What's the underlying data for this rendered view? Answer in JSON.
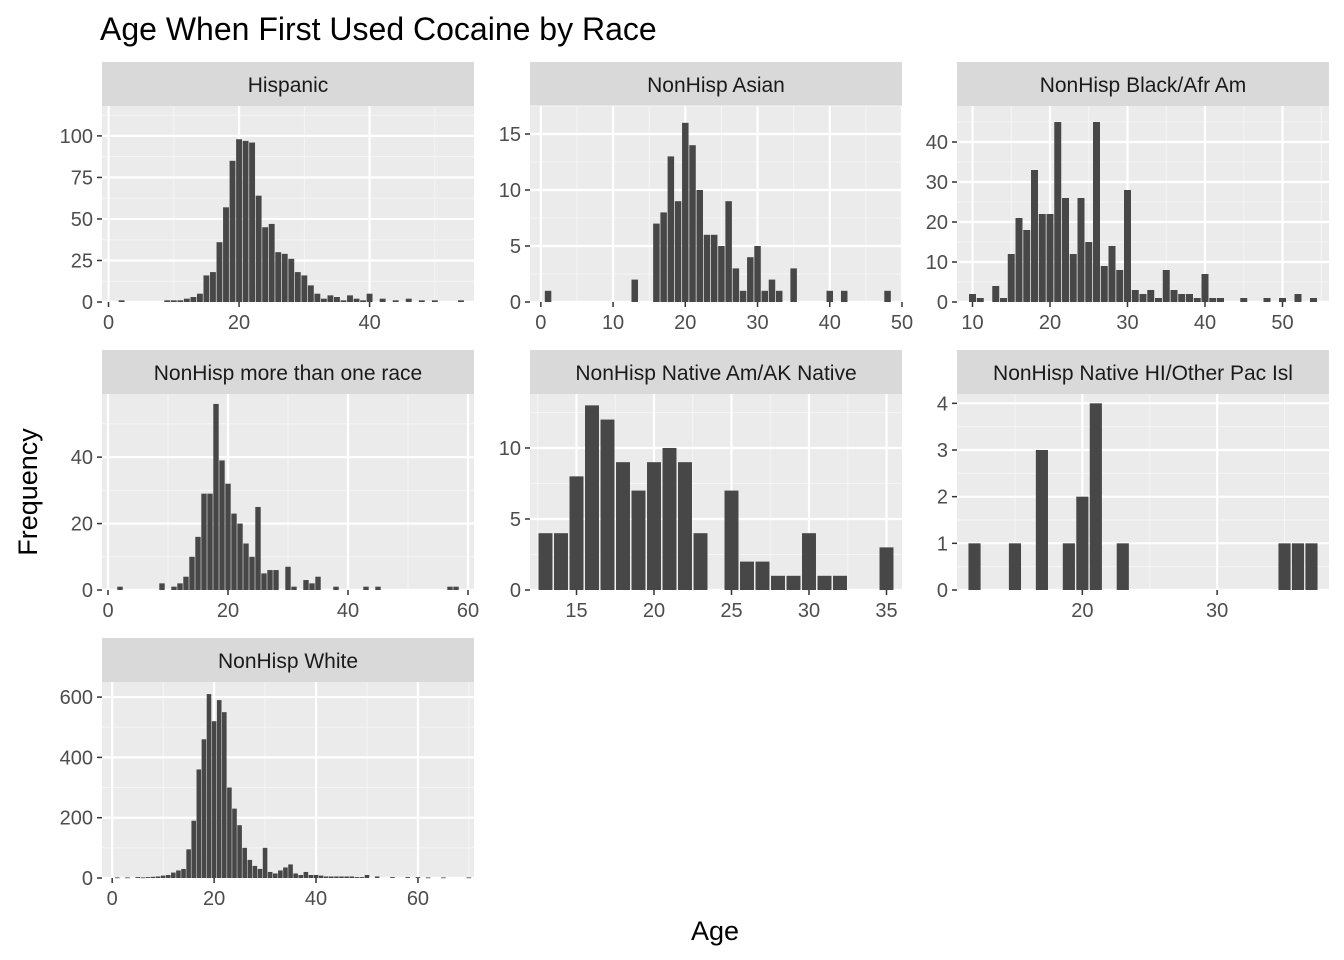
{
  "chart_data": {
    "type": "bar",
    "title": "Age When First Used Cocaine by Race",
    "xlabel": "Age",
    "ylabel": "Frequency",
    "grid": true,
    "legend": "none",
    "facets": [
      {
        "name": "Hispanic",
        "xlim": [
          -1,
          56
        ],
        "ylim": [
          0,
          118
        ],
        "xticks": [
          0,
          20,
          40
        ],
        "yticks": [
          0,
          25,
          50,
          75,
          100
        ],
        "x": [
          2,
          9,
          10,
          11,
          12,
          13,
          14,
          15,
          16,
          17,
          18,
          19,
          20,
          21,
          22,
          23,
          24,
          25,
          26,
          27,
          28,
          29,
          30,
          31,
          32,
          33,
          34,
          35,
          36,
          37,
          38,
          39,
          40,
          42,
          44,
          46,
          48,
          50,
          54
        ],
        "values": [
          1,
          1,
          1,
          1,
          2,
          3,
          5,
          16,
          18,
          36,
          57,
          85,
          98,
          97,
          96,
          64,
          45,
          47,
          30,
          29,
          26,
          18,
          16,
          10,
          5,
          2,
          4,
          3,
          1,
          4,
          2,
          1,
          5,
          2,
          1,
          2,
          1,
          1,
          1
        ]
      },
      {
        "name": "NonHisp Asian",
        "xlim": [
          -1.5,
          50
        ],
        "ylim": [
          0,
          17.5
        ],
        "xticks": [
          0,
          10,
          20,
          30,
          40,
          50
        ],
        "yticks": [
          0,
          5,
          10,
          15
        ],
        "x": [
          1,
          13,
          16,
          17,
          18,
          19,
          20,
          21,
          22,
          23,
          24,
          25,
          26,
          27,
          28,
          29,
          30,
          31,
          32,
          33,
          35,
          40,
          42,
          48
        ],
        "values": [
          1,
          2,
          7,
          8,
          13,
          9,
          16,
          14,
          10,
          6,
          6,
          5,
          9,
          3,
          1,
          4,
          5,
          1,
          2,
          1,
          3,
          1,
          1,
          1
        ]
      },
      {
        "name": "NonHisp Black/Afr Am",
        "xlim": [
          8,
          56
        ],
        "ylim": [
          0,
          49
        ],
        "xticks": [
          10,
          20,
          30,
          40,
          50
        ],
        "yticks": [
          0,
          10,
          20,
          30,
          40
        ],
        "x": [
          10,
          11,
          13,
          14,
          15,
          16,
          17,
          18,
          19,
          20,
          21,
          22,
          23,
          24,
          25,
          26,
          27,
          28,
          29,
          30,
          31,
          32,
          33,
          34,
          35,
          36,
          37,
          38,
          39,
          40,
          41,
          42,
          45,
          48,
          50,
          52,
          54
        ],
        "values": [
          2,
          1,
          4,
          1,
          12,
          21,
          18,
          33,
          22,
          22,
          45,
          26,
          12,
          26,
          15,
          45,
          9,
          14,
          8,
          28,
          3,
          2,
          3,
          1,
          8,
          3,
          2,
          2,
          1,
          7,
          1,
          1,
          1,
          1,
          1,
          2,
          1
        ]
      },
      {
        "name": "NonHisp more than one race",
        "xlim": [
          -1,
          61
        ],
        "ylim": [
          0,
          59
        ],
        "xticks": [
          0,
          20,
          40,
          60
        ],
        "yticks": [
          0,
          20,
          40
        ],
        "x": [
          2,
          9,
          11,
          12,
          13,
          14,
          15,
          16,
          17,
          18,
          19,
          20,
          21,
          22,
          23,
          24,
          25,
          26,
          27,
          28,
          30,
          31,
          33,
          34,
          35,
          38,
          43,
          45,
          57,
          58
        ],
        "values": [
          1,
          2,
          1,
          2,
          4,
          10,
          16,
          29,
          29,
          56,
          39,
          32,
          23,
          20,
          14,
          10,
          25,
          5,
          6,
          6,
          7,
          1,
          3,
          2,
          4,
          1,
          1,
          1,
          1,
          1
        ]
      },
      {
        "name": "NonHisp Native Am/AK Native",
        "xlim": [
          12,
          36
        ],
        "ylim": [
          0,
          13.8
        ],
        "xticks": [
          15,
          20,
          25,
          30,
          35
        ],
        "yticks": [
          0,
          5,
          10
        ],
        "x": [
          13,
          14,
          15,
          16,
          17,
          18,
          19,
          20,
          21,
          22,
          23,
          25,
          26,
          27,
          28,
          29,
          30,
          31,
          32,
          35
        ],
        "values": [
          4,
          4,
          8,
          13,
          12,
          9,
          7,
          9,
          10,
          9,
          4,
          7,
          2,
          2,
          1,
          1,
          4,
          1,
          1,
          3
        ]
      },
      {
        "name": "NonHisp Native HI/Other Pac Isl",
        "xlim": [
          10.7,
          38.3
        ],
        "ylim": [
          0,
          4.2
        ],
        "xticks": [
          20,
          30
        ],
        "yticks": [
          0,
          1,
          2,
          3,
          4
        ],
        "x": [
          12,
          15,
          17,
          19,
          20,
          21,
          23,
          35,
          36,
          37
        ],
        "values": [
          1,
          1,
          3,
          1,
          2,
          4,
          1,
          1,
          1,
          1
        ]
      },
      {
        "name": "NonHisp White",
        "xlim": [
          -2,
          71
        ],
        "ylim": [
          0,
          650
        ],
        "xticks": [
          0,
          20,
          40,
          60
        ],
        "yticks": [
          0,
          200,
          400,
          600
        ],
        "x": [
          1,
          3,
          5,
          6,
          7,
          8,
          9,
          10,
          11,
          12,
          13,
          14,
          15,
          16,
          17,
          18,
          19,
          20,
          21,
          22,
          23,
          24,
          25,
          26,
          27,
          28,
          29,
          30,
          31,
          32,
          33,
          34,
          35,
          36,
          37,
          38,
          39,
          40,
          41,
          42,
          43,
          44,
          45,
          46,
          47,
          48,
          49,
          50,
          52,
          55,
          58,
          60,
          62,
          65,
          70
        ],
        "values": [
          2,
          2,
          3,
          2,
          3,
          4,
          5,
          8,
          10,
          18,
          25,
          30,
          95,
          190,
          360,
          460,
          610,
          520,
          590,
          550,
          300,
          230,
          175,
          100,
          60,
          40,
          30,
          100,
          20,
          15,
          25,
          35,
          45,
          15,
          10,
          20,
          10,
          10,
          8,
          5,
          5,
          5,
          5,
          5,
          5,
          3,
          3,
          10,
          5,
          3,
          3,
          3,
          2,
          2,
          2
        ]
      }
    ]
  }
}
